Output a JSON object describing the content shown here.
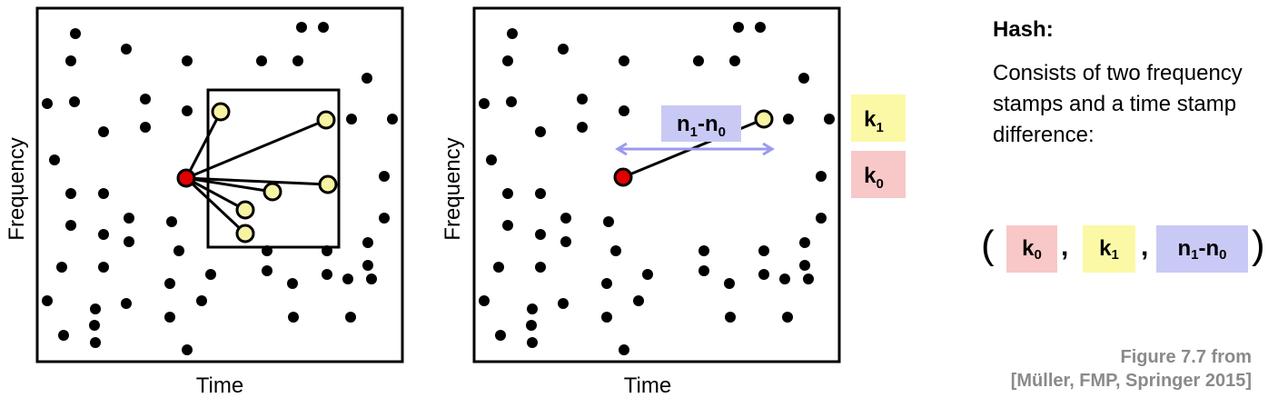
{
  "colors": {
    "anchor": "#e00000",
    "target": "#f7f3a3",
    "k1_fill": "#fbf9a6",
    "k0_fill": "#f8c7c7",
    "diff_fill": "#c9c9f5",
    "arrow": "#9b9bec",
    "caption": "#8a8a8a"
  },
  "left_panel": {
    "xlabel": "Time",
    "ylabel": "Frequency"
  },
  "right_panel": {
    "xlabel": "Time",
    "ylabel": "Frequency",
    "diff_label": {
      "main": "n",
      "s1": "1",
      "mid": "-n",
      "s2": "0"
    }
  },
  "legend": {
    "k1": {
      "main": "k",
      "sub": "1"
    },
    "k0": {
      "main": "k",
      "sub": "0"
    }
  },
  "hash": {
    "title": "Hash:",
    "description": "Consists of two frequency stamps and a time stamp difference:",
    "open_paren": "(",
    "close_paren": ")",
    "comma": ",",
    "k0": {
      "main": "k",
      "sub": "0"
    },
    "k1": {
      "main": "k",
      "sub": "1"
    },
    "diff": {
      "main": "n",
      "s1": "1",
      "mid": "-n",
      "s2": "0"
    }
  },
  "caption": {
    "line1": "Figure 7.7 from",
    "line2": "[Müller, FMP, Springer 2015]"
  }
}
